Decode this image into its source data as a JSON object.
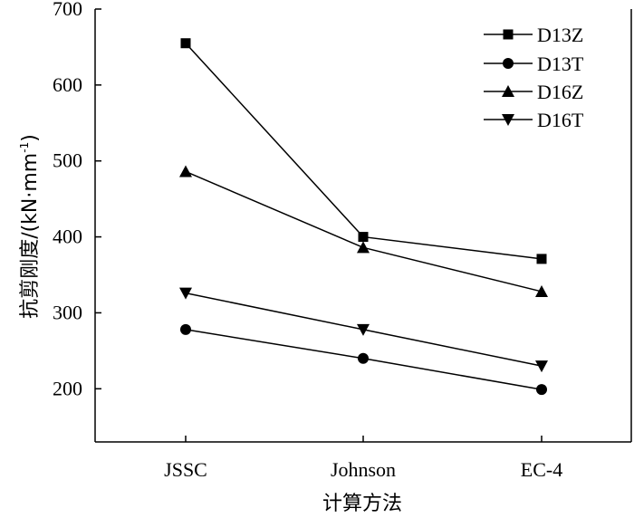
{
  "chart_data": {
    "type": "line",
    "categories": [
      "JSSC",
      "Johnson",
      "EC-4"
    ],
    "series": [
      {
        "name": "D13Z",
        "marker": "square",
        "values": [
          655,
          400,
          371
        ]
      },
      {
        "name": "D13T",
        "marker": "circle",
        "values": [
          278,
          240,
          199
        ]
      },
      {
        "name": "D16Z",
        "marker": "triangle-up",
        "values": [
          486,
          386,
          328
        ]
      },
      {
        "name": "D16T",
        "marker": "triangle-down",
        "values": [
          326,
          278,
          230
        ]
      }
    ],
    "xlabel": "计算方法",
    "ylabel": "抗剪刚度/(kN·mm",
    "ylabel_sup": "-1",
    "ylabel_tail": ")",
    "ylim": [
      130,
      700
    ],
    "yticks": [
      200,
      300,
      400,
      500,
      600,
      700
    ],
    "legend_position": "top-right",
    "grid": false
  },
  "colors": {
    "line": "#000000",
    "marker": "#000000"
  }
}
